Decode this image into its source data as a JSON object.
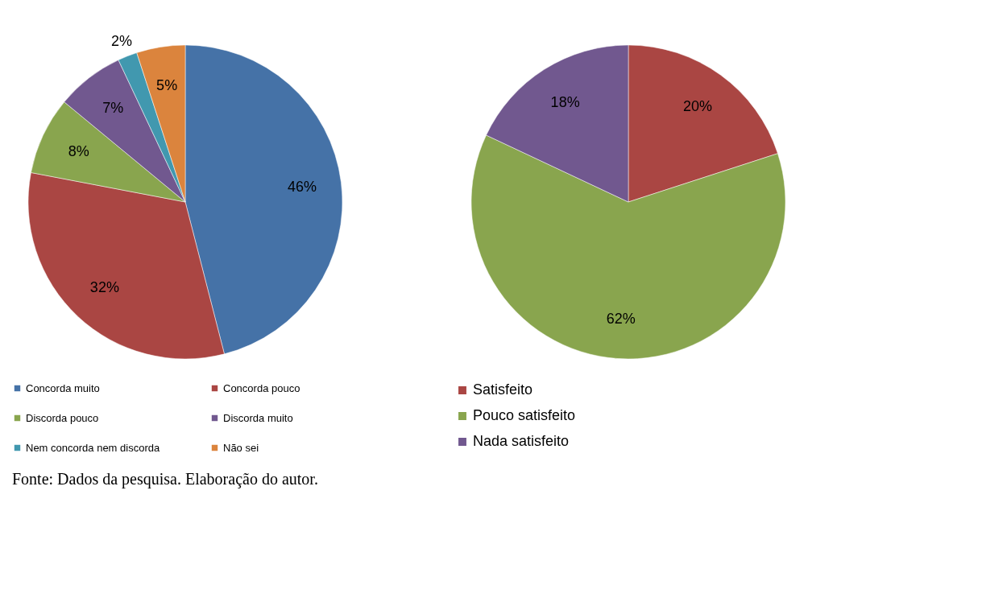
{
  "chart_data": [
    {
      "type": "pie",
      "categories": [
        "Concorda muito",
        "Concorda pouco",
        "Discorda pouco",
        "Discorda muito",
        "Nem concorda nem discorda",
        "Não sei"
      ],
      "values": [
        46,
        32,
        8,
        7,
        2,
        5
      ],
      "value_labels": [
        "46%",
        "32%",
        "8%",
        "7%",
        "2%",
        "5%"
      ],
      "colors": [
        "#4572a7",
        "#aa4643",
        "#89a54e",
        "#71588f",
        "#4198af",
        "#db843d"
      ],
      "legend": "bottom",
      "annotations": [
        "Fonte: Dados da pesquisa. Elaboração do autor."
      ]
    },
    {
      "type": "pie",
      "categories": [
        "Satisfeito",
        "Pouco satisfeito",
        "Nada satisfeito"
      ],
      "values": [
        20,
        62,
        18
      ],
      "value_labels": [
        "20%",
        "62%",
        "18%"
      ],
      "colors": [
        "#aa4643",
        "#89a54e",
        "#71588f"
      ],
      "legend": "bottom"
    }
  ]
}
